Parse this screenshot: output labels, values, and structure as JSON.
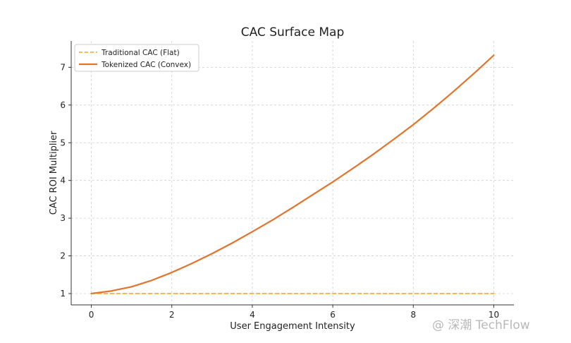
{
  "chart_data": {
    "type": "line",
    "title": "CAC Surface Map",
    "xlabel": "User Engagement Intensity",
    "ylabel": "CAC ROI Multiplier",
    "xlim": [
      -0.5,
      10.5
    ],
    "ylim": [
      0.7,
      7.7
    ],
    "xticks": [
      0,
      2,
      4,
      6,
      8,
      10
    ],
    "yticks": [
      1,
      2,
      3,
      4,
      5,
      6,
      7
    ],
    "grid": true,
    "legend_position": "top-left",
    "series": [
      {
        "name": "Traditional CAC (Flat)",
        "style": "dashed",
        "color": "#f5a623",
        "x": [
          0,
          10
        ],
        "y": [
          1,
          1
        ]
      },
      {
        "name": "Tokenized CAC (Convex)",
        "style": "solid",
        "color": "#e2742c",
        "x": [
          0,
          0.5,
          1,
          1.5,
          2,
          2.5,
          3,
          3.5,
          4,
          4.5,
          5,
          5.5,
          6,
          6.5,
          7,
          7.5,
          8,
          8.5,
          9,
          9.5,
          10
        ],
        "y": [
          1.0,
          1.07,
          1.18,
          1.35,
          1.56,
          1.8,
          2.06,
          2.34,
          2.64,
          2.95,
          3.28,
          3.62,
          3.96,
          4.32,
          4.69,
          5.08,
          5.48,
          5.91,
          6.36,
          6.83,
          7.32
        ]
      }
    ]
  },
  "watermark": {
    "text": "@ 深潮 TechFlow"
  }
}
